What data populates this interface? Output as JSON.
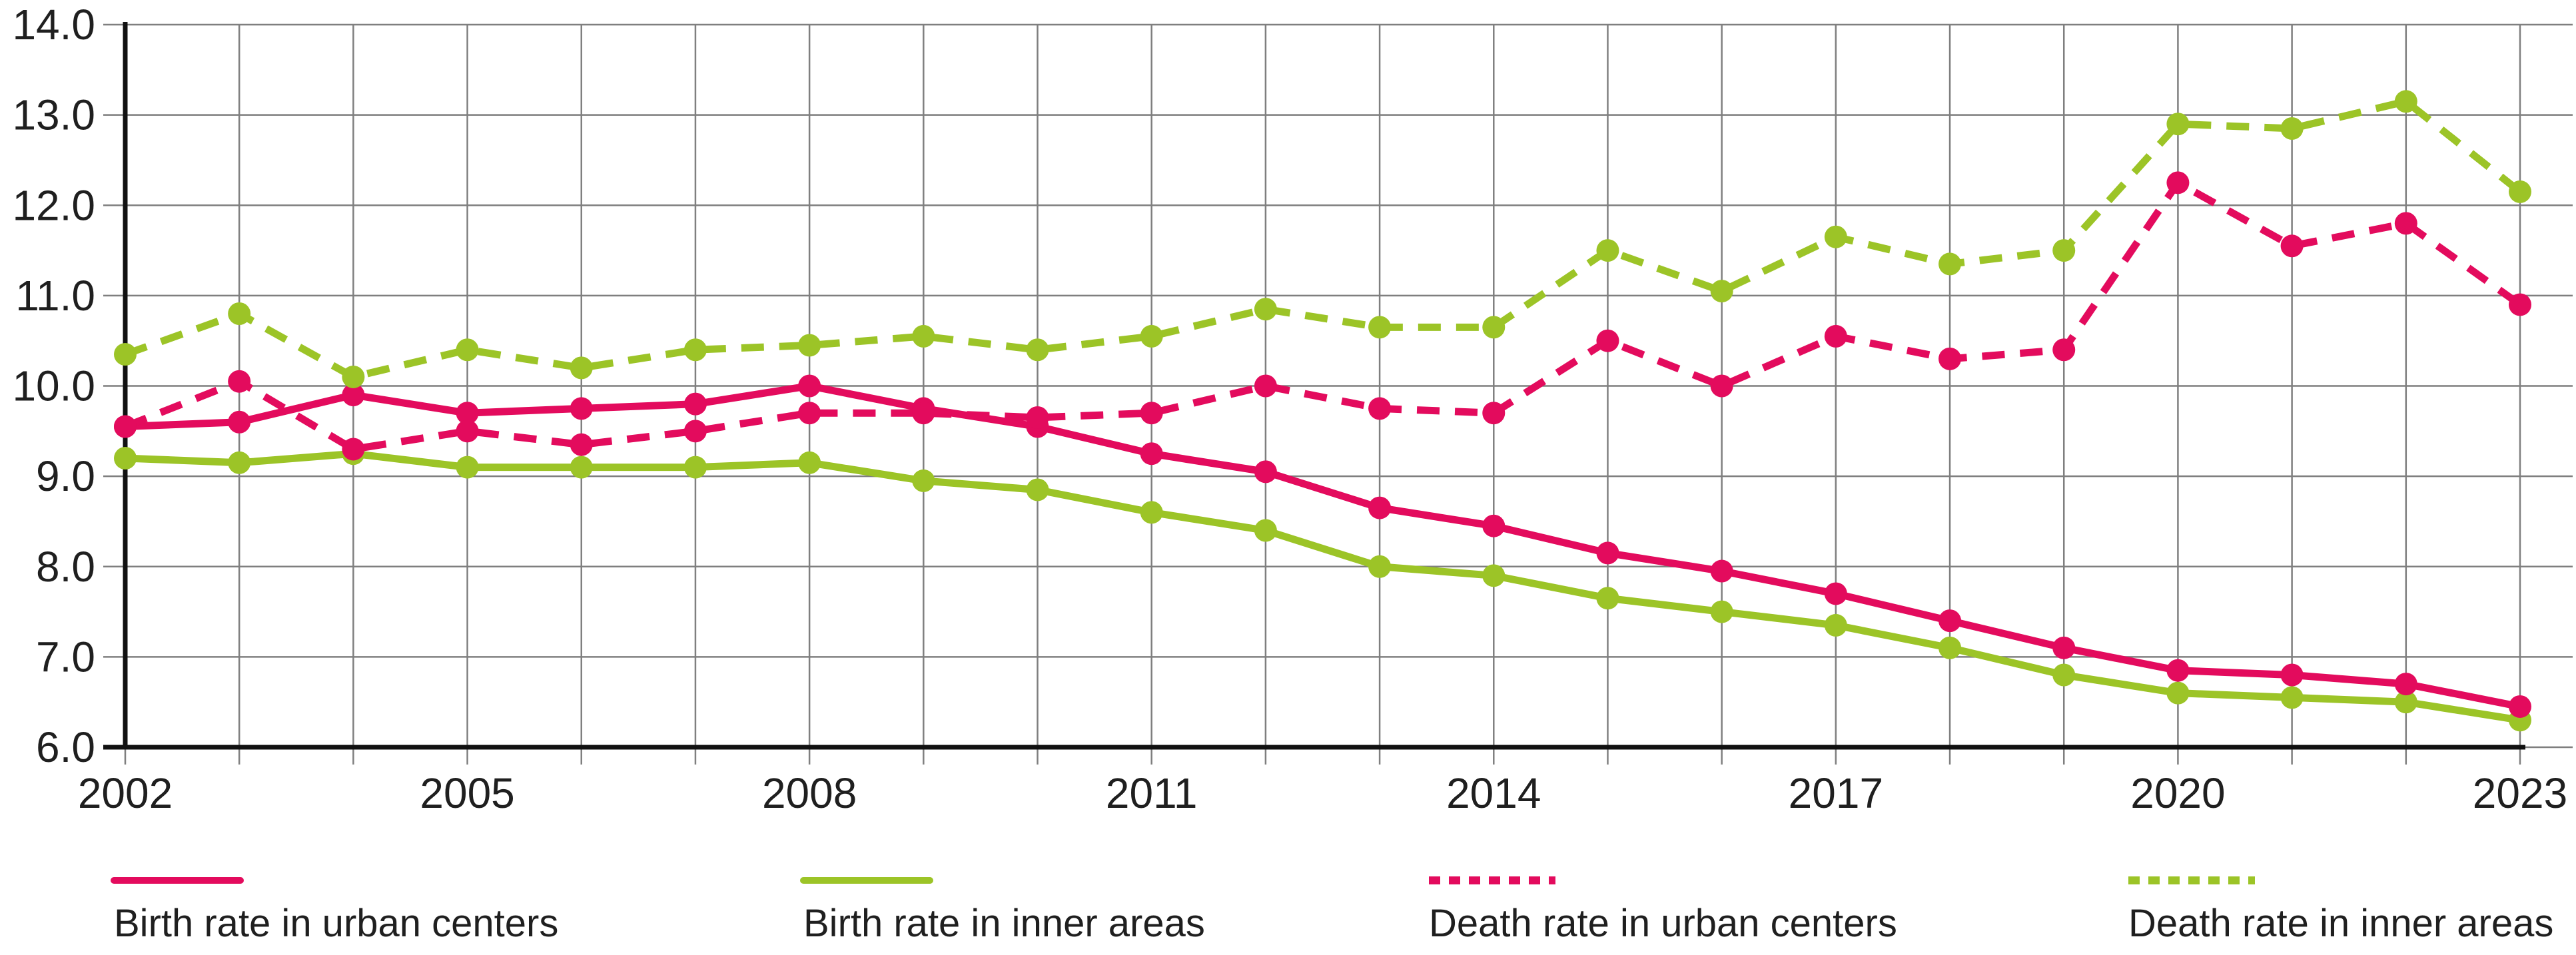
{
  "chart_data": {
    "type": "line",
    "title": "",
    "xlabel": "",
    "ylabel": "",
    "x": [
      2002,
      2003,
      2004,
      2005,
      2006,
      2007,
      2008,
      2009,
      2010,
      2011,
      2012,
      2013,
      2014,
      2015,
      2016,
      2017,
      2018,
      2019,
      2020,
      2021,
      2022,
      2023
    ],
    "x_tick_labels": [
      "2002",
      "2005",
      "2008",
      "2011",
      "2014",
      "2017",
      "2020",
      "2023"
    ],
    "y_tick_labels": [
      "14.0",
      "13.0",
      "12.0",
      "11.0",
      "10.0",
      "9.0",
      "8.0",
      "7.0",
      "6.0"
    ],
    "ylim": [
      6.0,
      14.0
    ],
    "y_tick_step": 1.0,
    "grid": true,
    "legend_position": "bottom",
    "series": [
      {
        "name": "Birth rate in urban centers",
        "color": "#e30b5d",
        "line_style": "solid",
        "marker": "circle",
        "values": [
          9.55,
          9.6,
          9.9,
          9.7,
          9.75,
          9.8,
          10.0,
          9.75,
          9.55,
          9.25,
          9.05,
          8.65,
          8.45,
          8.15,
          7.95,
          7.7,
          7.4,
          7.1,
          6.85,
          6.8,
          6.7,
          6.45
        ]
      },
      {
        "name": "Birth rate in inner areas",
        "color": "#9cc427",
        "line_style": "solid",
        "marker": "circle",
        "values": [
          9.2,
          9.15,
          9.25,
          9.1,
          9.1,
          9.1,
          9.15,
          8.95,
          8.85,
          8.6,
          8.4,
          8.0,
          7.9,
          7.65,
          7.5,
          7.35,
          7.1,
          6.8,
          6.6,
          6.55,
          6.5,
          6.3
        ]
      },
      {
        "name": "Death rate in urban centers",
        "color": "#e30b5d",
        "line_style": "dashed",
        "marker": "circle",
        "values": [
          9.55,
          10.05,
          9.3,
          9.5,
          9.35,
          9.5,
          9.7,
          9.7,
          9.65,
          9.7,
          10.0,
          9.75,
          9.7,
          10.5,
          10.0,
          10.55,
          10.3,
          10.4,
          12.25,
          11.55,
          11.8,
          10.9
        ]
      },
      {
        "name": "Death rate in inner areas",
        "color": "#9cc427",
        "line_style": "dashed",
        "marker": "circle",
        "values": [
          10.35,
          10.8,
          10.1,
          10.4,
          10.2,
          10.4,
          10.45,
          10.55,
          10.4,
          10.55,
          10.85,
          10.65,
          10.65,
          11.5,
          11.05,
          11.65,
          11.35,
          11.5,
          12.9,
          12.85,
          13.15,
          12.15
        ]
      }
    ],
    "colors": {
      "grid": "#7f7f7f",
      "axis": "#111111",
      "text": "#1f1f1f",
      "background": "#ffffff",
      "pink_accent": "#e30b5d",
      "green_accent": "#9cc427"
    }
  }
}
